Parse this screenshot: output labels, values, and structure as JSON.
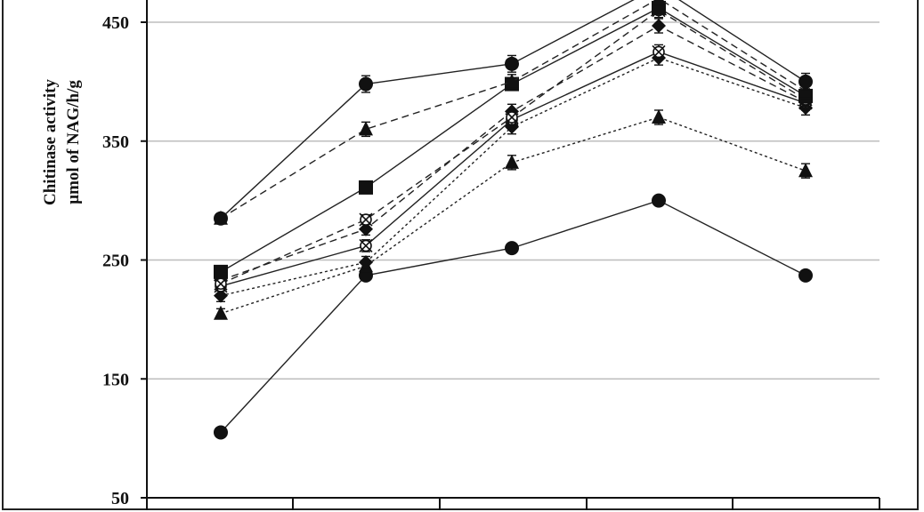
{
  "chart_data": {
    "type": "line",
    "title": "",
    "xlabel": "",
    "ylabel_lines": [
      "Chitinase activity",
      "µmol of NAG/h/g"
    ],
    "ylim": [
      50,
      450
    ],
    "yticks": [
      50,
      150,
      250,
      350,
      450
    ],
    "grid": true,
    "x": [
      1,
      2,
      3,
      4,
      5
    ],
    "series": [
      {
        "marker": "circle",
        "dash": "solid",
        "values": [
          105,
          237,
          260,
          300,
          237
        ],
        "err": [
          3,
          4,
          4,
          4,
          3
        ]
      },
      {
        "marker": "triangle",
        "dash": "dotted",
        "values": [
          205,
          245,
          332,
          370,
          325
        ],
        "err": [
          4,
          4,
          6,
          6,
          6
        ]
      },
      {
        "marker": "diamond",
        "dash": "dotted",
        "values": [
          220,
          248,
          362,
          420,
          378
        ],
        "err": [
          5,
          5,
          6,
          6,
          6
        ]
      },
      {
        "marker": "cross",
        "dash": "solid",
        "values": [
          228,
          262,
          368,
          425,
          382
        ],
        "err": [
          4,
          5,
          6,
          6,
          6
        ]
      },
      {
        "marker": "diamond",
        "dash": "dashed",
        "values": [
          233,
          276,
          375,
          447,
          383
        ],
        "err": [
          4,
          5,
          6,
          6,
          6
        ]
      },
      {
        "marker": "cross",
        "dash": "dashed",
        "values": [
          230,
          284,
          370,
          460,
          385
        ],
        "err": [
          4,
          4,
          6,
          6,
          6
        ]
      },
      {
        "marker": "square",
        "dash": "solid",
        "values": [
          240,
          311,
          398,
          462,
          388
        ],
        "err": [
          4,
          4,
          5,
          5,
          6
        ]
      },
      {
        "marker": "triangle",
        "dash": "dashed",
        "values": [
          285,
          360,
          400,
          470,
          392
        ],
        "err": [
          4,
          6,
          6,
          6,
          6
        ]
      },
      {
        "marker": "circle",
        "dash": "solid",
        "values": [
          285,
          398,
          415,
          480,
          400
        ],
        "err": [
          4,
          7,
          7,
          7,
          7
        ]
      }
    ]
  }
}
